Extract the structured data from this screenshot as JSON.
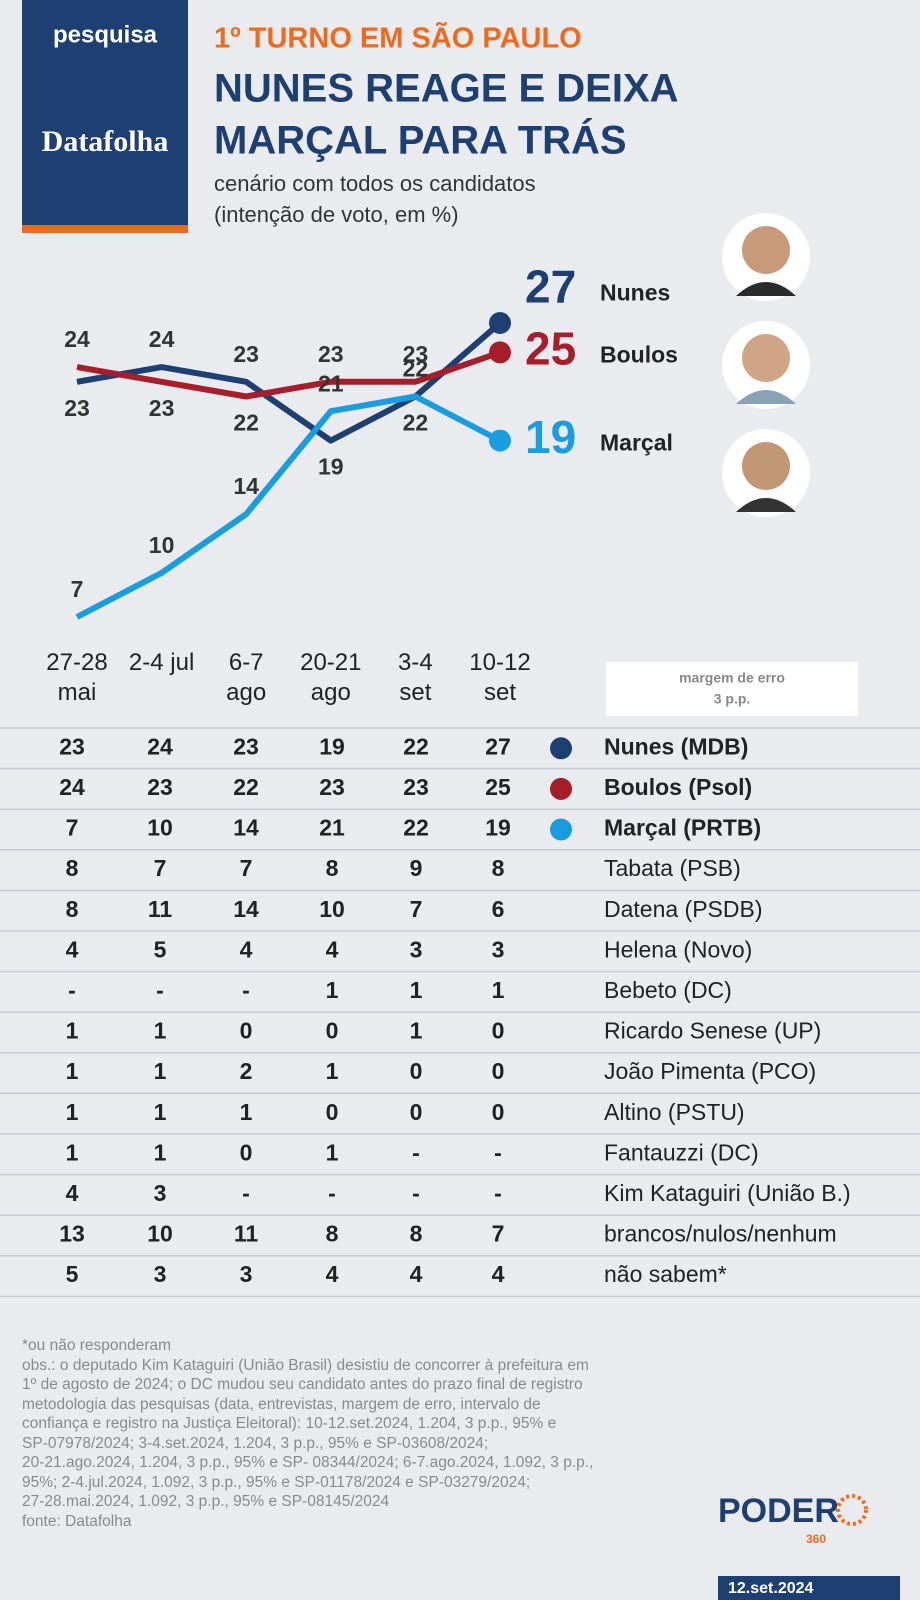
{
  "header": {
    "tag": "pesquisa",
    "brand": "Datafolha",
    "kicker": "1º TURNO EM SÃO PAULO",
    "title_lines": [
      "NUNES REAGE E DEIXA",
      "MARÇAL PARA TRÁS"
    ],
    "subtitle_lines": [
      "cenário com todos os candidatos",
      "(intenção de voto, em %)"
    ]
  },
  "chart_data": {
    "type": "line",
    "categories": [
      "27-28 mai",
      "2-4 jul",
      "6-7 ago",
      "20-21 ago",
      "3-4 set",
      "10-12 set"
    ],
    "series": [
      {
        "name": "Nunes",
        "color": "#1d3f72",
        "values": [
          23,
          24,
          23,
          19,
          22,
          27
        ]
      },
      {
        "name": "Boulos",
        "color": "#a61e2a",
        "values": [
          24,
          23,
          22,
          23,
          23,
          25
        ]
      },
      {
        "name": "Marçal",
        "color": "#1a9ce0",
        "values": [
          7,
          10,
          14,
          21,
          22,
          19
        ]
      }
    ]
  },
  "margin": {
    "title": "margem de erro",
    "value": "3 p.p."
  },
  "table": {
    "rows": [
      {
        "label": "Nunes (MDB)",
        "values": [
          23,
          24,
          23,
          19,
          22,
          27
        ]
      },
      {
        "label": "Boulos (Psol)",
        "values": [
          24,
          23,
          22,
          23,
          23,
          25
        ]
      },
      {
        "label": "Marçal (PRTB)",
        "values": [
          7,
          10,
          14,
          21,
          22,
          19
        ]
      },
      {
        "label": "Tabata (PSB)",
        "values": [
          8,
          7,
          7,
          8,
          9,
          8
        ]
      },
      {
        "label": "Datena (PSDB)",
        "values": [
          8,
          11,
          14,
          10,
          7,
          6
        ]
      },
      {
        "label": "Helena (Novo)",
        "values": [
          4,
          5,
          4,
          4,
          3,
          3
        ]
      },
      {
        "label": "Bebeto (DC)",
        "values": [
          "-",
          "-",
          "-",
          1,
          1,
          1
        ]
      },
      {
        "label": "Ricardo Senese (UP)",
        "values": [
          1,
          1,
          0,
          0,
          1,
          0
        ]
      },
      {
        "label": "João Pimenta (PCO)",
        "values": [
          1,
          1,
          2,
          1,
          0,
          0
        ]
      },
      {
        "label": "Altino (PSTU)",
        "values": [
          1,
          1,
          1,
          0,
          0,
          0
        ]
      },
      {
        "label": "Fantauzzi (DC)",
        "values": [
          1,
          1,
          0,
          1,
          "-",
          "-"
        ]
      },
      {
        "label": "Kim Kataguiri (União B.)",
        "values": [
          4,
          3,
          "-",
          "-",
          "-",
          "-"
        ]
      },
      {
        "label": "brancos/nulos/nenhum",
        "values": [
          13,
          10,
          11,
          8,
          8,
          7
        ]
      },
      {
        "label": "não sabem*",
        "values": [
          5,
          3,
          3,
          4,
          4,
          4
        ]
      }
    ]
  },
  "footnotes": [
    "*ou não responderam",
    "obs.: o deputado Kim Kataguiri (União Brasil) desistiu de concorrer à prefeitura em",
    "1º de agosto de 2024; o DC mudou seu candidato antes do prazo final de registro",
    "metodologia das pesquisas (data, entrevistas, margem de erro, intervalo de",
    "confiança e registro na Justiça Eleitoral): 10-12.set.2024, 1.204, 3 p.p., 95% e",
    "SP-07978/2024; 3-4.set.2024, 1.204, 3 p.p., 95% e SP-03608/2024;",
    "20-21.ago.2024, 1.204, 3 p.p., 95% e SP- 08344/2024; 6-7.ago.2024, 1.092, 3 p.p.,",
    "95%; 2-4.jul.2024, 1.092, 3 p.p., 95% e SP-01178/2024 e SP-03279/2024;",
    "27-28.mai.2024, 1.092, 3 p.p., 95% e SP-08145/2024",
    "fonte: Datafolha"
  ],
  "logo": {
    "name": "PODER",
    "sub": "360",
    "date": "12.set.2024"
  }
}
